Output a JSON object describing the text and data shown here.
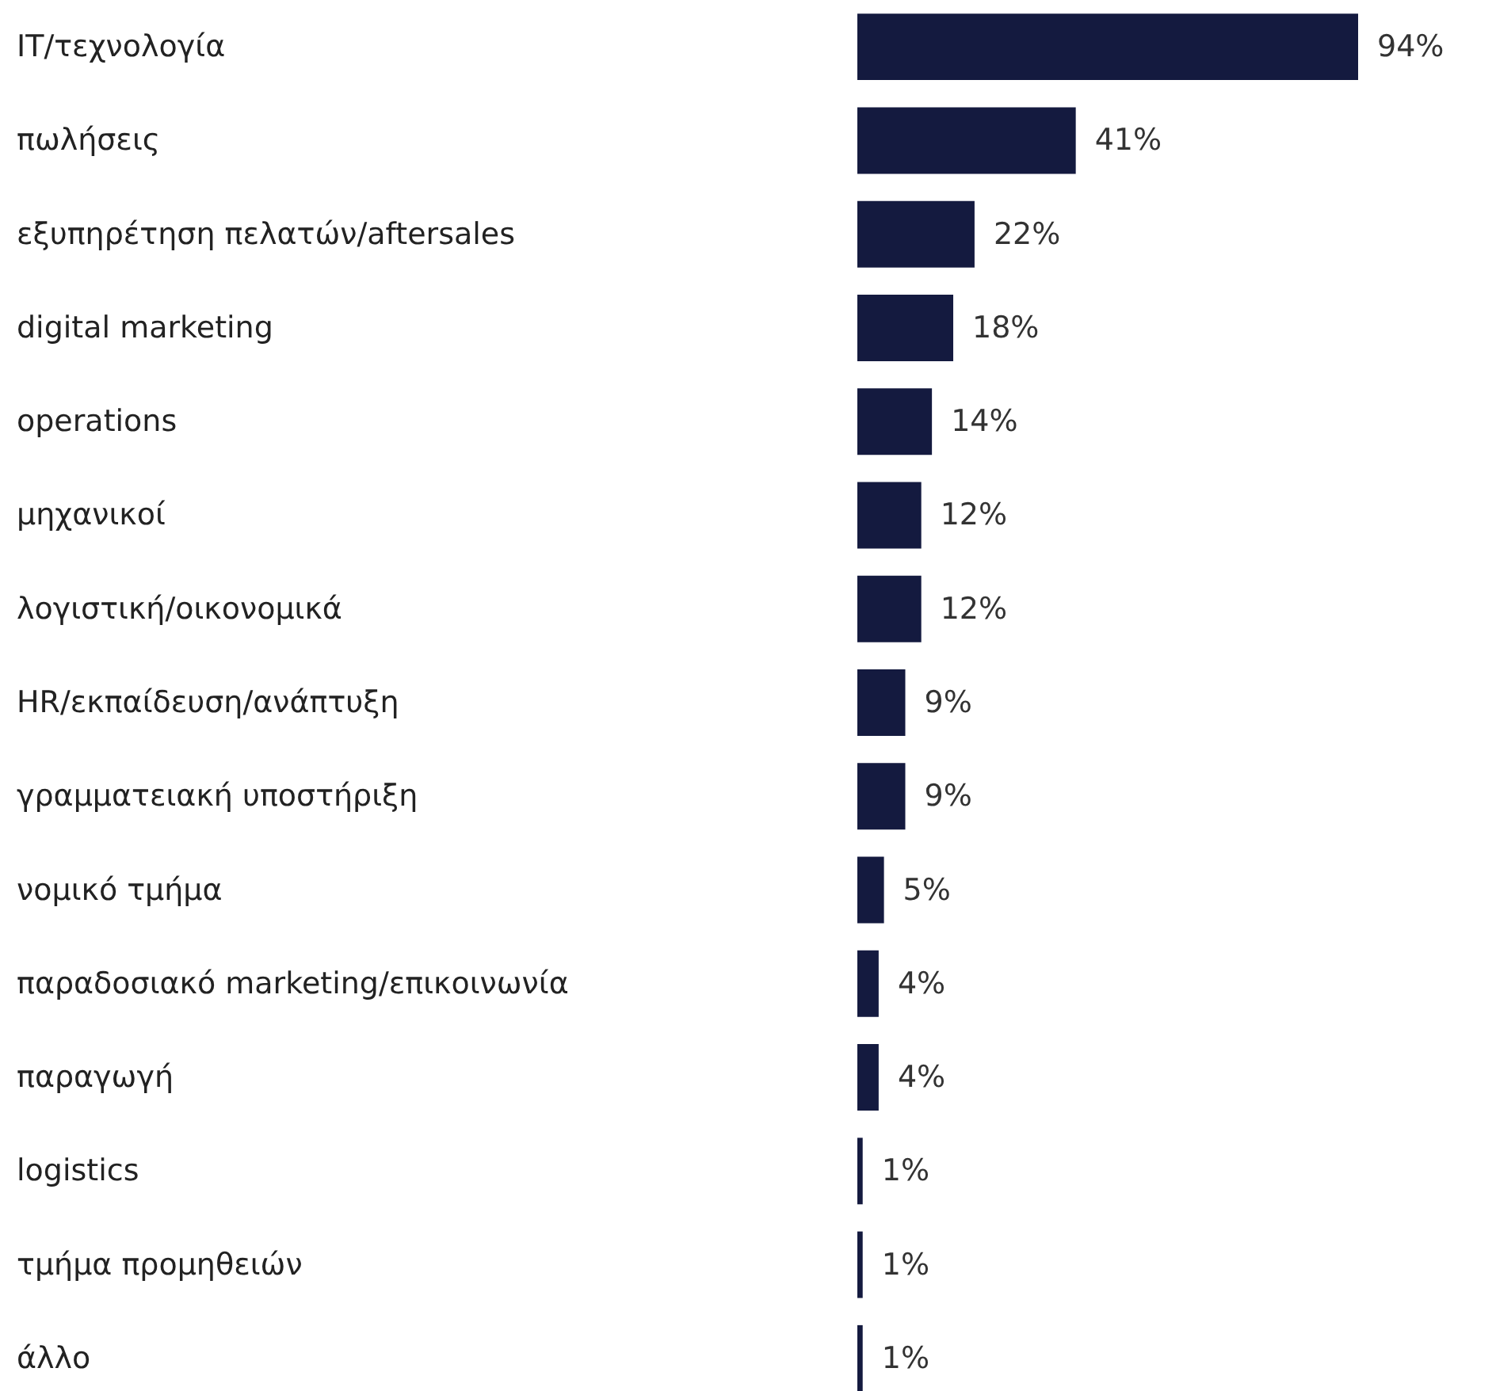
{
  "chart_data": {
    "type": "bar",
    "orientation": "horizontal",
    "data_labels": true,
    "color": "#141a3f",
    "categories": [
      "IT/τεχνολογία",
      "πωλήσεις",
      "εξυπηρέτηση πελατών/aftersales",
      "digital marketing",
      "operations",
      "μηχανικοί",
      "λογιστική/οικονομικά",
      "HR/εκπαίδευση/ανάπτυξη",
      "γραμματειακή υποστήριξη",
      "νομικό τμήμα",
      "παραδοσιακό marketing/επικοινωνία",
      "παραγωγή",
      "logistics",
      "τμήμα προμηθειών",
      "άλλο"
    ],
    "values": [
      94,
      41,
      22,
      18,
      14,
      12,
      12,
      9,
      9,
      5,
      4,
      4,
      1,
      1,
      1
    ],
    "value_labels": [
      "94%",
      "41%",
      "22%",
      "18%",
      "14%",
      "12%",
      "12%",
      "9%",
      "9%",
      "5%",
      "4%",
      "4%",
      "1%",
      "1%",
      "1%"
    ]
  }
}
